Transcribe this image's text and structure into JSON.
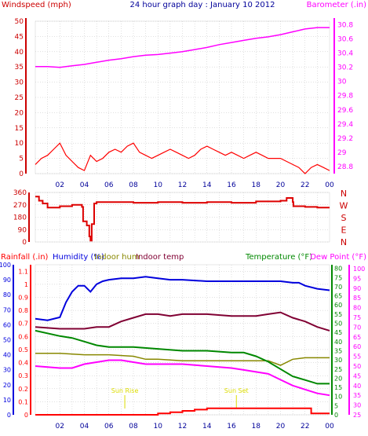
{
  "page_title": "24 hour graph day : January 10 2012",
  "colors": {
    "wind_speed": "#ff0000",
    "wind_avg": "#0000cc",
    "barometer": "#ff00ff",
    "direction": "#dd0000",
    "rainfall": "#ff0000",
    "humidity": "#0000dd",
    "indoor_hum": "#888800",
    "indoor_temp": "#800033",
    "temperature": "#008800",
    "dew_point": "#ff00ff",
    "annotation": "#dddd00",
    "grid": "#c0c0c0"
  },
  "chart_data": [
    {
      "type": "line",
      "title": "24 hour graph day : January 10 2012",
      "x_ticks": [
        "02",
        "04",
        "06",
        "08",
        "10",
        "12",
        "14",
        "16",
        "18",
        "20",
        "22",
        "00"
      ],
      "xlim": [
        0,
        24
      ],
      "left_axis": {
        "label": "Windspeed (mph)",
        "ticks": [
          "50",
          "45",
          "40",
          "35",
          "30",
          "25",
          "20",
          "15",
          "10",
          "5",
          "0"
        ],
        "ylim": [
          0,
          50
        ]
      },
      "right_axis": {
        "label": "Barometer (.in)",
        "ticks": [
          "30.8",
          "30.6",
          "30.4",
          "30.2",
          "30",
          "29.8",
          "29.6",
          "29.4",
          "29.2",
          "29",
          "28.8"
        ],
        "ylim": [
          28.7,
          30.85
        ]
      },
      "series": [
        {
          "name": "Windspeed (mph)",
          "axis": "left",
          "x": [
            0,
            0.5,
            1,
            1.5,
            2,
            2.5,
            3,
            3.5,
            4,
            4.5,
            5,
            5.5,
            6,
            6.5,
            7,
            7.5,
            8,
            8.5,
            9,
            9.5,
            10,
            10.5,
            11,
            11.5,
            12,
            12.5,
            13,
            13.5,
            14,
            14.5,
            15,
            15.5,
            16,
            16.5,
            17,
            17.5,
            18,
            18.5,
            19,
            19.5,
            20,
            20.5,
            21,
            21.5,
            22,
            22.5,
            23,
            23.5,
            24
          ],
          "y": [
            3,
            5,
            6,
            8,
            10,
            6,
            4,
            2,
            1,
            6,
            4,
            5,
            7,
            8,
            7,
            9,
            10,
            7,
            6,
            5,
            6,
            7,
            8,
            7,
            6,
            5,
            6,
            8,
            9,
            8,
            7,
            6,
            7,
            6,
            5,
            6,
            7,
            6,
            5,
            5,
            5,
            4,
            3,
            2,
            0,
            2,
            3,
            2,
            1
          ]
        },
        {
          "name": "Barometer (.in)",
          "axis": "right",
          "x": [
            0,
            1,
            2,
            3,
            4,
            5,
            6,
            7,
            8,
            9,
            10,
            11,
            12,
            13,
            14,
            15,
            16,
            17,
            18,
            19,
            20,
            21,
            22,
            23,
            24
          ],
          "y": [
            30.21,
            30.21,
            30.2,
            30.22,
            30.24,
            30.27,
            30.3,
            30.32,
            30.35,
            30.37,
            30.38,
            30.4,
            30.42,
            30.45,
            30.48,
            30.52,
            30.55,
            30.58,
            30.61,
            30.63,
            30.66,
            30.7,
            30.74,
            30.76,
            30.76
          ]
        }
      ]
    },
    {
      "type": "line",
      "left_axis": {
        "ticks": [
          "360",
          "270",
          "180",
          "90",
          "0"
        ],
        "ylim": [
          0,
          360
        ]
      },
      "right_axis": {
        "ticks": [
          "N",
          "W",
          "S",
          "E",
          "N"
        ]
      },
      "series": [
        {
          "name": "Wind direction",
          "x": [
            0,
            0.3,
            0.6,
            1,
            2,
            3,
            3.8,
            3.9,
            4.2,
            4.4,
            4.5,
            4.6,
            4.8,
            5,
            6,
            8,
            10,
            12,
            14,
            16,
            18,
            20,
            20.5,
            21,
            21.05,
            22,
            23,
            24
          ],
          "y": [
            330,
            300,
            280,
            250,
            260,
            270,
            255,
            150,
            120,
            40,
            10,
            130,
            280,
            290,
            290,
            285,
            290,
            285,
            290,
            285,
            295,
            300,
            320,
            290,
            260,
            255,
            250,
            250
          ]
        }
      ]
    },
    {
      "type": "line",
      "x_ticks": [
        "02",
        "04",
        "06",
        "08",
        "10",
        "12",
        "14",
        "16",
        "18",
        "20",
        "22",
        "00"
      ],
      "xlim": [
        0,
        24
      ],
      "axes": [
        {
          "label": "Rainfall (.in)",
          "ticks": [
            "1.1",
            "1",
            "0.9",
            "0.8",
            "0.7",
            "0.6",
            "0.5",
            "0.4",
            "0.3",
            "0.2",
            "0.1",
            "0"
          ],
          "ylim": [
            0,
            1.15
          ]
        },
        {
          "label": "Humidity (%)",
          "ticks": [
            "100",
            "90",
            "80",
            "70",
            "60",
            "50",
            "40",
            "30",
            "20",
            "10",
            "0"
          ],
          "ylim": [
            0,
            100
          ]
        },
        {
          "label": "Indoor hum"
        },
        {
          "label": "Indoor temp"
        },
        {
          "label": "Temperature (°F)",
          "ticks": [
            "80",
            "75",
            "70",
            "65",
            "60",
            "55",
            "50",
            "45",
            "40",
            "35",
            "30",
            "25",
            "20",
            "15",
            "10",
            "5",
            "0"
          ],
          "ylim": [
            0,
            82
          ]
        },
        {
          "label": "Dew Point (°F)",
          "ticks": [
            "100",
            "95",
            "90",
            "85",
            "80",
            "75",
            "70",
            "65",
            "60",
            "55",
            "50",
            "45",
            "40",
            "35",
            "30",
            "25"
          ],
          "ylim": [
            25,
            102
          ]
        }
      ],
      "annotations": [
        {
          "text": "Sun Rise",
          "x": 7.3
        },
        {
          "text": "Sun Set",
          "x": 16.4
        }
      ],
      "series": [
        {
          "name": "Humidity (%)",
          "x": [
            0,
            1,
            2,
            2.5,
            3,
            3.5,
            4,
            4.5,
            5,
            5.5,
            6,
            7,
            8,
            9,
            10,
            11,
            12,
            14,
            16,
            18,
            20,
            21,
            21.5,
            22,
            23,
            24
          ],
          "y": [
            64,
            63,
            65,
            75,
            82,
            86,
            86,
            82,
            87,
            89,
            90,
            91,
            91,
            92,
            91,
            90,
            90,
            89,
            89,
            89,
            89,
            88,
            88,
            86,
            84,
            83
          ]
        },
        {
          "name": "Indoor hum",
          "x": [
            0,
            2,
            4,
            6,
            8,
            9,
            10,
            12,
            14,
            16,
            18,
            19,
            20,
            21,
            22,
            24
          ],
          "y": [
            41,
            41,
            40,
            40,
            39,
            37,
            37,
            36,
            36,
            36,
            36,
            36,
            33,
            37,
            38,
            38
          ]
        },
        {
          "name": "Indoor temp",
          "x": [
            0,
            2,
            3,
            4,
            5,
            6,
            7,
            8,
            9,
            10,
            11,
            12,
            14,
            16,
            17,
            18,
            19,
            20,
            21,
            22,
            23,
            24
          ],
          "y": [
            48,
            47,
            47,
            47,
            48,
            48,
            51,
            53,
            55,
            55,
            54,
            55,
            55,
            54,
            54,
            54,
            55,
            56,
            53,
            51,
            48,
            46
          ]
        },
        {
          "name": "Temperature (°F)",
          "x": [
            0,
            2,
            3,
            4,
            5,
            6,
            8,
            10,
            12,
            14,
            16,
            17,
            18,
            19,
            20,
            21,
            22,
            23,
            24
          ],
          "y": [
            46,
            43,
            42,
            40,
            38,
            37,
            37,
            36,
            35,
            35,
            34,
            34,
            32,
            29,
            25,
            21,
            19,
            17,
            17
          ]
        },
        {
          "name": "Dew Point (°F)",
          "x": [
            0,
            2,
            3,
            4,
            5,
            6,
            7,
            8,
            9,
            10,
            12,
            14,
            16,
            17,
            18,
            19,
            20,
            21,
            22,
            23,
            24
          ],
          "y": [
            50,
            49,
            49,
            51,
            52,
            53,
            53,
            52,
            51,
            51,
            51,
            50,
            49,
            48,
            47,
            46,
            43,
            40,
            38,
            36,
            35
          ]
        },
        {
          "name": "Rainfall (.in)",
          "x": [
            0,
            8,
            9,
            10,
            11,
            12,
            13,
            14,
            15,
            16,
            17,
            18,
            19,
            20,
            21,
            22,
            22.5,
            23,
            24
          ],
          "y": [
            0,
            0,
            0,
            0.01,
            0.02,
            0.03,
            0.04,
            0.05,
            0.05,
            0.05,
            0.05,
            0.05,
            0.05,
            0.05,
            0.05,
            0.05,
            0.01,
            0.01,
            0.01
          ]
        }
      ]
    }
  ]
}
